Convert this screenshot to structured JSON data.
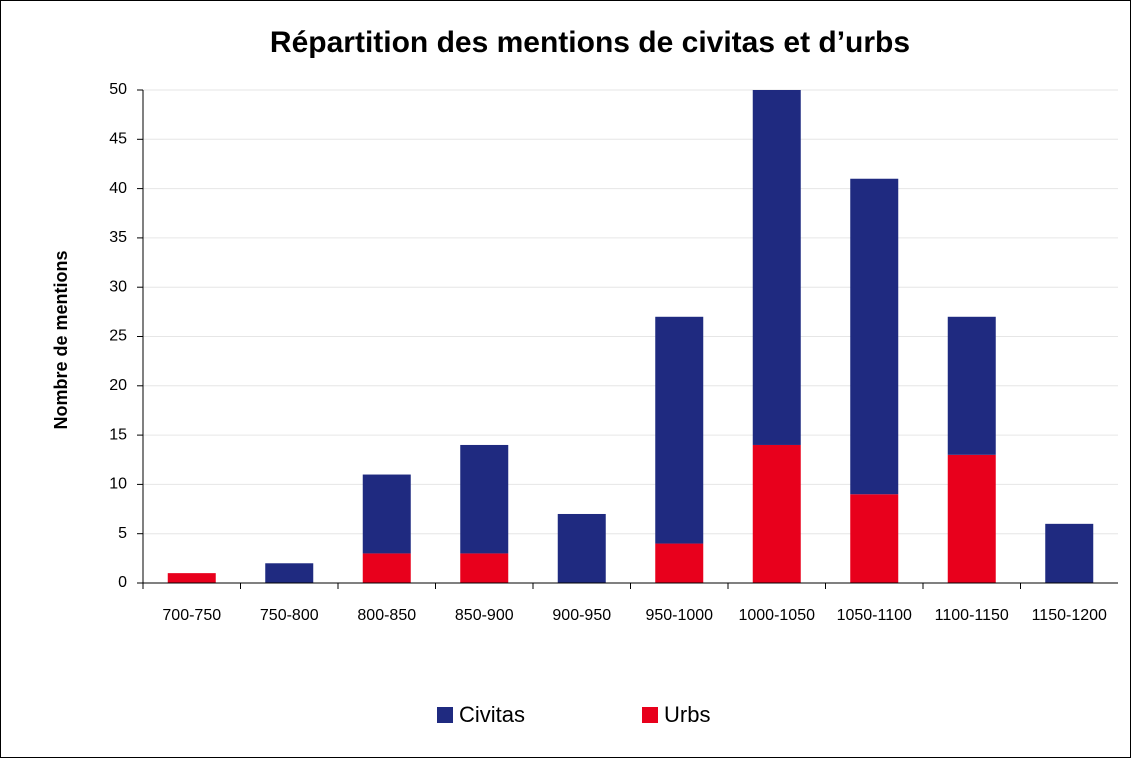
{
  "chart_data": {
    "type": "stacked_bar",
    "title": "Répartition des mentions de civitas et d’urbs",
    "y_label": "Nombre de mentions",
    "categories": [
      "700-750",
      "750-800",
      "800-850",
      "850-900",
      "900-950",
      "950-1000",
      "1000-1050",
      "1050-1100",
      "1100-1150",
      "1150-1200"
    ],
    "series": [
      {
        "name": "Civitas",
        "color": "#1f2a80",
        "values": [
          0,
          2,
          8,
          11,
          7,
          23,
          36,
          32,
          14,
          6
        ]
      },
      {
        "name": "Urbs",
        "color": "#e8001c",
        "values": [
          1,
          0,
          3,
          3,
          0,
          4,
          14,
          9,
          13,
          0
        ]
      }
    ],
    "ylim": [
      0,
      50
    ],
    "yticks": [
      0,
      5,
      10,
      15,
      20,
      25,
      30,
      35,
      40,
      45,
      50
    ],
    "grid": true,
    "legend": "bottom"
  }
}
